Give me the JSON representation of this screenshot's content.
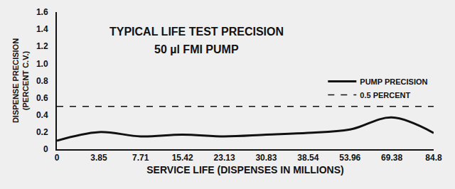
{
  "chart_data": {
    "type": "line",
    "title": "TYPICAL LIFE TEST PRECISION",
    "subtitle": "50 µl FMI PUMP",
    "x_label": "SERVICE LIFE (DISPENSES IN MILLIONS)",
    "y_label": "DISPENSE PRECISION\n(PERCENT C.V.)",
    "categories": [
      "0",
      "3.85",
      "7.71",
      "15.42",
      "23.13",
      "30.83",
      "38.54",
      "53.96",
      "69.38",
      "84.8"
    ],
    "series": [
      {
        "name": "PUMP PRECISION",
        "color": "#111111",
        "line_style": "solid",
        "values": [
          0.1,
          0.2,
          0.15,
          0.17,
          0.15,
          0.17,
          0.19,
          0.23,
          0.37,
          0.19
        ]
      },
      {
        "name": "0.5 PERCENT",
        "color": "#111111",
        "line_style": "dashed",
        "values": [
          0.5,
          0.5,
          0.5,
          0.5,
          0.5,
          0.5,
          0.5,
          0.5,
          0.5,
          0.5
        ]
      }
    ],
    "ylim": [
      0,
      1.6
    ],
    "yticks": [
      0,
      0.2,
      0.4,
      0.6,
      0.8,
      {
        "value": 1,
        "label": "1.0"
      },
      1.2,
      1.4,
      1.6
    ],
    "grid": false,
    "legend": "right"
  }
}
